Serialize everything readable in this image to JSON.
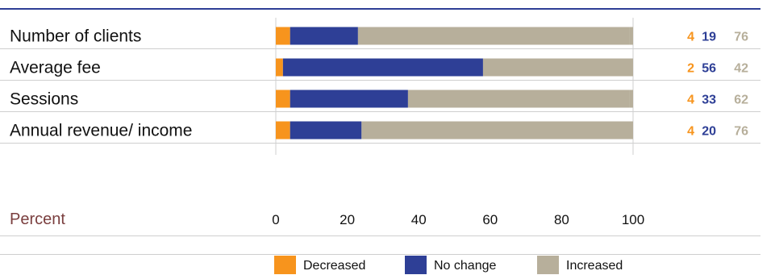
{
  "chart_data": {
    "type": "bar",
    "stacked": true,
    "orientation": "horizontal",
    "categories": [
      "Number of clients",
      "Average fee",
      "Sessions",
      "Annual revenue/ income"
    ],
    "series": [
      {
        "name": "Decreased",
        "color": "#F7941D",
        "values": [
          4,
          2,
          4,
          4
        ]
      },
      {
        "name": "No change",
        "color": "#2E3F96",
        "values": [
          19,
          56,
          33,
          20
        ]
      },
      {
        "name": "Increased",
        "color": "#B7AF9B",
        "values": [
          76,
          42,
          62,
          76
        ]
      }
    ],
    "xlabel": "Percent",
    "xlim": [
      0,
      100
    ],
    "xticks": [
      0,
      20,
      40,
      60,
      80,
      100
    ],
    "legend_position": "bottom",
    "value_label_colors": [
      "#F7941D",
      "#2E3F96",
      "#B7AF9B"
    ],
    "axis_title_color": "#7A3E3E",
    "rule_color": "#2E3F96"
  }
}
